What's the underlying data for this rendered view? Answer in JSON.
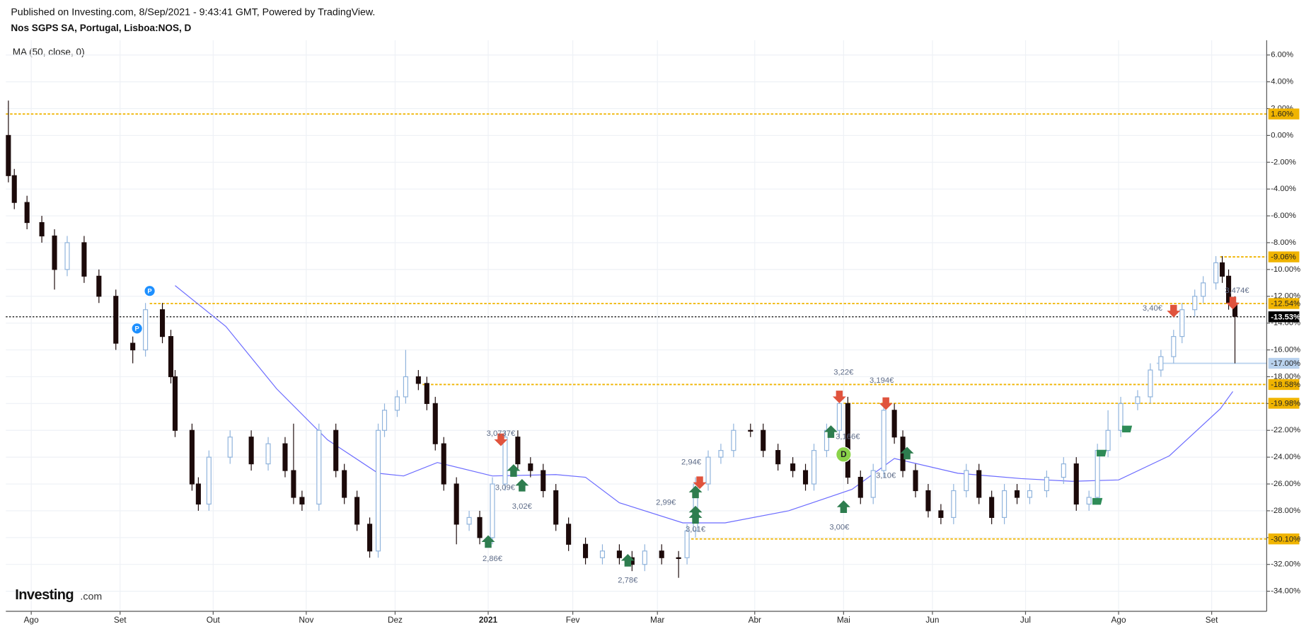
{
  "chart_data": {
    "type": "candlestick",
    "subtitle": "Published on Investing.com, 8/Sep/2021 - 9:43:41 GMT, Powered by TradingView.",
    "title": "Nos SGPS SA, Portugal, Lisboa:NOS, D",
    "logo": [
      "Investing",
      ".com"
    ],
    "grid": true,
    "up_color": "#ffffff",
    "up_border": "#8fb3dc",
    "down_color": "#1c0a0a",
    "xlim": [
      0,
      298
    ],
    "xticks": [
      {
        "value": 6,
        "label": "Ago"
      },
      {
        "value": 27,
        "label": "Set"
      },
      {
        "value": 49,
        "label": "Out"
      },
      {
        "value": 71,
        "label": "Nov"
      },
      {
        "value": 92,
        "label": "Dez"
      },
      {
        "value": 114,
        "label": "2021"
      },
      {
        "value": 134,
        "label": "Fev"
      },
      {
        "value": 154,
        "label": "Mar"
      },
      {
        "value": 177,
        "label": "Abr"
      },
      {
        "value": 198,
        "label": "Mai"
      },
      {
        "value": 219,
        "label": "Jun"
      },
      {
        "value": 241,
        "label": "Jul"
      },
      {
        "value": 263,
        "label": "Ago"
      },
      {
        "value": 285,
        "label": "Set"
      }
    ],
    "ylim": [
      -35.5,
      7.1
    ],
    "yticks": [
      {
        "value": 6,
        "label": "6.00%"
      },
      {
        "value": 4,
        "label": "4.00%"
      },
      {
        "value": 2,
        "label": "2.00%"
      },
      {
        "value": 0,
        "label": "0.00%"
      },
      {
        "value": -2,
        "label": "-2.00%"
      },
      {
        "value": -4,
        "label": "-4.00%"
      },
      {
        "value": -6,
        "label": "-6.00%"
      },
      {
        "value": -8,
        "label": "-8.00%"
      },
      {
        "value": -10,
        "label": "-10.00%"
      },
      {
        "value": -12,
        "label": "-12.00%"
      },
      {
        "value": -14,
        "label": "-14.00%"
      },
      {
        "value": -16,
        "label": "-16.00%"
      },
      {
        "value": -18,
        "label": "-18.00%"
      },
      {
        "value": -20,
        "label": "-20.00%"
      },
      {
        "value": -22,
        "label": "-22.00%"
      },
      {
        "value": -24,
        "label": "-24.00%"
      },
      {
        "value": -26,
        "label": "-26.00%"
      },
      {
        "value": -28,
        "label": "-28.00%"
      },
      {
        "value": -30,
        "label": "-30.00%"
      },
      {
        "value": -32,
        "label": "-32.00%"
      },
      {
        "value": -34,
        "label": "-34.00%"
      }
    ],
    "x": [
      0.6,
      2,
      5,
      8.5,
      11.5,
      14.5,
      18.5,
      22,
      26,
      30,
      33,
      37,
      39,
      40,
      44,
      45.5,
      48,
      53,
      58,
      62,
      66,
      68,
      70,
      74,
      78,
      80,
      83,
      86,
      88,
      89.5,
      92.5,
      94.5,
      97.5,
      99.5,
      101.5,
      103.5,
      106.5,
      109.5,
      112,
      115,
      118,
      121,
      124,
      127,
      130,
      133,
      137,
      141,
      145,
      148,
      151,
      155,
      159,
      161,
      163,
      166,
      169,
      172,
      176,
      179,
      182.5,
      186,
      189,
      191,
      194,
      197,
      199,
      202,
      205,
      207.5,
      210,
      212,
      215,
      218,
      221,
      224,
      227,
      230,
      233,
      236,
      239,
      242,
      246,
      250,
      253,
      256,
      258,
      260.5,
      263.5,
      267.5,
      270.5,
      273,
      276,
      278,
      281,
      283,
      286,
      287.5,
      289,
      290.5
    ],
    "open": [
      0,
      -3,
      -5,
      -6.5,
      -7.5,
      -10,
      -8,
      -10.5,
      -12,
      -15.5,
      -16,
      -13,
      -15,
      -18,
      -22,
      -26,
      -27.5,
      -24,
      -22.5,
      -24.5,
      -23,
      -25,
      -27,
      -27.5,
      -22,
      -25,
      -27,
      -29,
      -31,
      -22,
      -20.5,
      -19.5,
      -18,
      -18.5,
      -20,
      -23,
      -26,
      -29,
      -28.5,
      -30,
      -26,
      -22.5,
      -24.5,
      -25,
      -26.5,
      -29,
      -30.5,
      -31.5,
      -31,
      -31.5,
      -32,
      -31,
      -31.5,
      -31.5,
      -29.5,
      -26,
      -24,
      -23.5,
      -22,
      -22,
      -23.5,
      -24.5,
      -25,
      -26,
      -23.5,
      -22,
      -20,
      -25.5,
      -27,
      -25,
      -20.5,
      -22.5,
      -25,
      -26.5,
      -28,
      -28.5,
      -26.5,
      -25,
      -27,
      -28.5,
      -26.5,
      -27,
      -26.5,
      -25.5,
      -24.5,
      -27.5,
      -27,
      -23.5,
      -22,
      -20,
      -19.5,
      -17.5,
      -16.5,
      -15,
      -13,
      -12,
      -11,
      -9.5,
      -10.5,
      -12.5
    ],
    "high": [
      2.6,
      -2.5,
      -4.5,
      -6,
      -7,
      -7.5,
      -7.5,
      -10,
      -11.5,
      -15,
      -12.5,
      -12.5,
      -14.5,
      -17.5,
      -21.5,
      -25.5,
      -23.5,
      -22,
      -22,
      -22.5,
      -22.5,
      -21.5,
      -26.5,
      -21.5,
      -21.5,
      -24.5,
      -26.5,
      -28.5,
      -21.5,
      -20,
      -19,
      -16,
      -17.5,
      -18,
      -19.5,
      -22.5,
      -25.5,
      -28,
      -28,
      -25.5,
      -22,
      -22,
      -24,
      -24.5,
      -26,
      -28.5,
      -30,
      -30.5,
      -30.5,
      -31,
      -30.5,
      -30.5,
      -31,
      -29,
      -25.5,
      -23.5,
      -23,
      -21.5,
      -21.5,
      -21.5,
      -23,
      -24,
      -24.5,
      -23,
      -21.5,
      -19.5,
      -19.5,
      -25,
      -24.5,
      -20,
      -20,
      -22,
      -24.5,
      -26,
      -27.5,
      -26,
      -24.5,
      -24.5,
      -26.5,
      -26,
      -26,
      -26,
      -25,
      -24,
      -24,
      -26.5,
      -23,
      -20.5,
      -19.5,
      -19,
      -17,
      -16,
      -14.5,
      -12.5,
      -11.5,
      -10.5,
      -9,
      -9,
      -10,
      -12
    ],
    "low": [
      -3.5,
      -5.5,
      -7,
      -8,
      -11.5,
      -10.5,
      -11,
      -12.5,
      -16,
      -17,
      -16.5,
      -15.5,
      -18.5,
      -22.5,
      -26.5,
      -28,
      -28,
      -24.5,
      -25,
      -25,
      -25.5,
      -27.5,
      -28,
      -28,
      -25.5,
      -27.5,
      -29.5,
      -31.5,
      -31.5,
      -22.5,
      -21,
      -20,
      -19,
      -20.5,
      -23.5,
      -26.5,
      -30.5,
      -29.5,
      -30.5,
      -30.5,
      -26.5,
      -25,
      -25.5,
      -27,
      -29.5,
      -31,
      -32,
      -32,
      -32,
      -32.5,
      -32.5,
      -32,
      -33,
      -32,
      -30,
      -26.5,
      -24.5,
      -24,
      -22.5,
      -24,
      -25,
      -25.5,
      -26.5,
      -26.5,
      -24,
      -22.5,
      -26,
      -27.5,
      -27.5,
      -25.5,
      -23,
      -25.5,
      -27,
      -28.5,
      -29,
      -29,
      -27,
      -27.5,
      -29,
      -29,
      -27.5,
      -27.5,
      -27,
      -26,
      -28,
      -28,
      -27.5,
      -24,
      -22.5,
      -20.5,
      -20,
      -18,
      -17,
      -15.5,
      -13.5,
      -12.5,
      -11.5,
      -11,
      -13,
      -17
    ],
    "close": [
      -3,
      -5,
      -6.5,
      -7.5,
      -10,
      -8,
      -10.5,
      -12,
      -15.5,
      -16,
      -13,
      -15,
      -18,
      -22,
      -26,
      -27.5,
      -24,
      -22.5,
      -24.5,
      -23,
      -25,
      -27,
      -27.5,
      -22,
      -25,
      -27,
      -29,
      -31,
      -22,
      -20.5,
      -19.5,
      -18,
      -18.5,
      -20,
      -23,
      -26,
      -29,
      -28.5,
      -30,
      -26,
      -22.5,
      -24.5,
      -25,
      -26.5,
      -29,
      -30.5,
      -31.5,
      -31,
      -31.5,
      -32,
      -31,
      -31.5,
      -31.5,
      -29.5,
      -26,
      -24,
      -23.5,
      -22,
      -22,
      -23.5,
      -24.5,
      -25,
      -26,
      -23.5,
      -22,
      -20,
      -25.5,
      -27,
      -25,
      -20.5,
      -22.5,
      -25,
      -26.5,
      -28,
      -28.5,
      -26.5,
      -25,
      -27,
      -28.5,
      -26.5,
      -27,
      -26.5,
      -25.5,
      -24.5,
      -27.5,
      -27,
      -23.5,
      -22,
      -20,
      -19.5,
      -17.5,
      -16.5,
      -15,
      -13,
      -12,
      -11,
      -9.5,
      -10.5,
      -12.5,
      -13.5
    ],
    "series": [
      {
        "name": "MA (50, close, 0)",
        "color": "#6b6bff",
        "x": [
          40,
          52,
          64,
          76,
          88,
          94,
          102,
          115,
          130,
          137,
          145,
          160,
          170,
          185,
          200,
          210,
          225,
          240,
          252,
          263,
          275,
          287,
          290
        ],
        "values": [
          -11.2,
          -14.25,
          -18.9,
          -22.7,
          -25.2,
          -25.4,
          -24.4,
          -25.4,
          -25.3,
          -25.5,
          -27.4,
          -28.9,
          -28.9,
          -28,
          -26.4,
          -24.1,
          -25.2,
          -25.6,
          -25.8,
          -25.7,
          -23.9,
          -20.4,
          -19.1
        ]
      }
    ],
    "levels": [
      {
        "value": 1.6,
        "label": "1.60%",
        "x_start": 0,
        "color": "#f0b400",
        "text_color": "#222",
        "style": "dashed"
      },
      {
        "value": -9.06,
        "label": "-9.06%",
        "x_start": 287,
        "color": "#f0b400",
        "text_color": "#222",
        "style": "dashed"
      },
      {
        "value": -12.54,
        "label": "-12.54%",
        "x_start": 34,
        "color": "#f0b400",
        "text_color": "#222",
        "style": "dashed"
      },
      {
        "value": -13.53,
        "label": "-13.53%",
        "x_start": 0,
        "color": "#000000",
        "text_color": "#fff",
        "style": "dotted"
      },
      {
        "value": -17,
        "label": "-17.00%",
        "x_start": 272,
        "color": "#b9d2ee",
        "text_color": "#222",
        "style": "solid"
      },
      {
        "value": -18.58,
        "label": "-18.58%",
        "x_start": 98.5,
        "color": "#f0b400",
        "text_color": "#222",
        "style": "dashed"
      },
      {
        "value": -19.98,
        "label": "-19.98%",
        "x_start": 198,
        "color": "#f0b400",
        "text_color": "#222",
        "style": "dashed"
      },
      {
        "value": -30.1,
        "label": "-30.10%",
        "x_start": 161,
        "color": "#f0b400",
        "text_color": "#222",
        "style": "dashed"
      }
    ],
    "annotations": [
      {
        "text": "3,0737€",
        "x": 117,
        "y": -22.25
      },
      {
        "text": "3,09€",
        "x": 118,
        "y": -26.3
      },
      {
        "text": "3,02€",
        "x": 122,
        "y": -27.7
      },
      {
        "text": "2,86€",
        "x": 115,
        "y": -31.6
      },
      {
        "text": "2,78€",
        "x": 147,
        "y": -33.2
      },
      {
        "text": "2,94€",
        "x": 162,
        "y": -24.4
      },
      {
        "text": "2,99€",
        "x": 156,
        "y": -27.4
      },
      {
        "text": "3,01€",
        "x": 163,
        "y": -29.4
      },
      {
        "text": "3,22€",
        "x": 198,
        "y": -17.7
      },
      {
        "text": "3,194€",
        "x": 207,
        "y": -18.3
      },
      {
        "text": "3,166€",
        "x": 199,
        "y": -22.5
      },
      {
        "text": "3,00€",
        "x": 197,
        "y": -29.25
      },
      {
        "text": "3,10€",
        "x": 208,
        "y": -25.4
      },
      {
        "text": "3,40€",
        "x": 271,
        "y": -12.9
      },
      {
        "text": "3,474€",
        "x": 291,
        "y": -11.6
      }
    ],
    "sell_arrows": {
      "color": "#e0533d",
      "x": [
        117,
        197,
        208,
        164,
        276,
        290
      ],
      "y": [
        -22.8,
        -19.6,
        -20.1,
        -26,
        -13.2,
        -12.6
      ]
    },
    "buy_arrows": {
      "color": "#2e7d4f",
      "x": [
        114,
        120,
        122,
        147,
        163,
        163,
        163,
        198,
        213,
        195
      ],
      "y": [
        -30.2,
        -24.9,
        -26,
        -31.6,
        -26.5,
        -28,
        -28.4,
        -27.6,
        -23.6,
        -22
      ]
    },
    "flags": {
      "color": "#2e8b57",
      "x": [
        258,
        259,
        265
      ],
      "y": [
        -27.3,
        -23.7,
        -21.9
      ]
    },
    "pins": [
      {
        "label": "P",
        "x": 34,
        "y": -11.6,
        "color": "#1e90ff"
      },
      {
        "label": "P",
        "x": 31,
        "y": -14.4,
        "color": "#1e90ff"
      },
      {
        "label": "D",
        "x": 198,
        "y": -23.8,
        "color": "#8bd34a"
      }
    ]
  }
}
